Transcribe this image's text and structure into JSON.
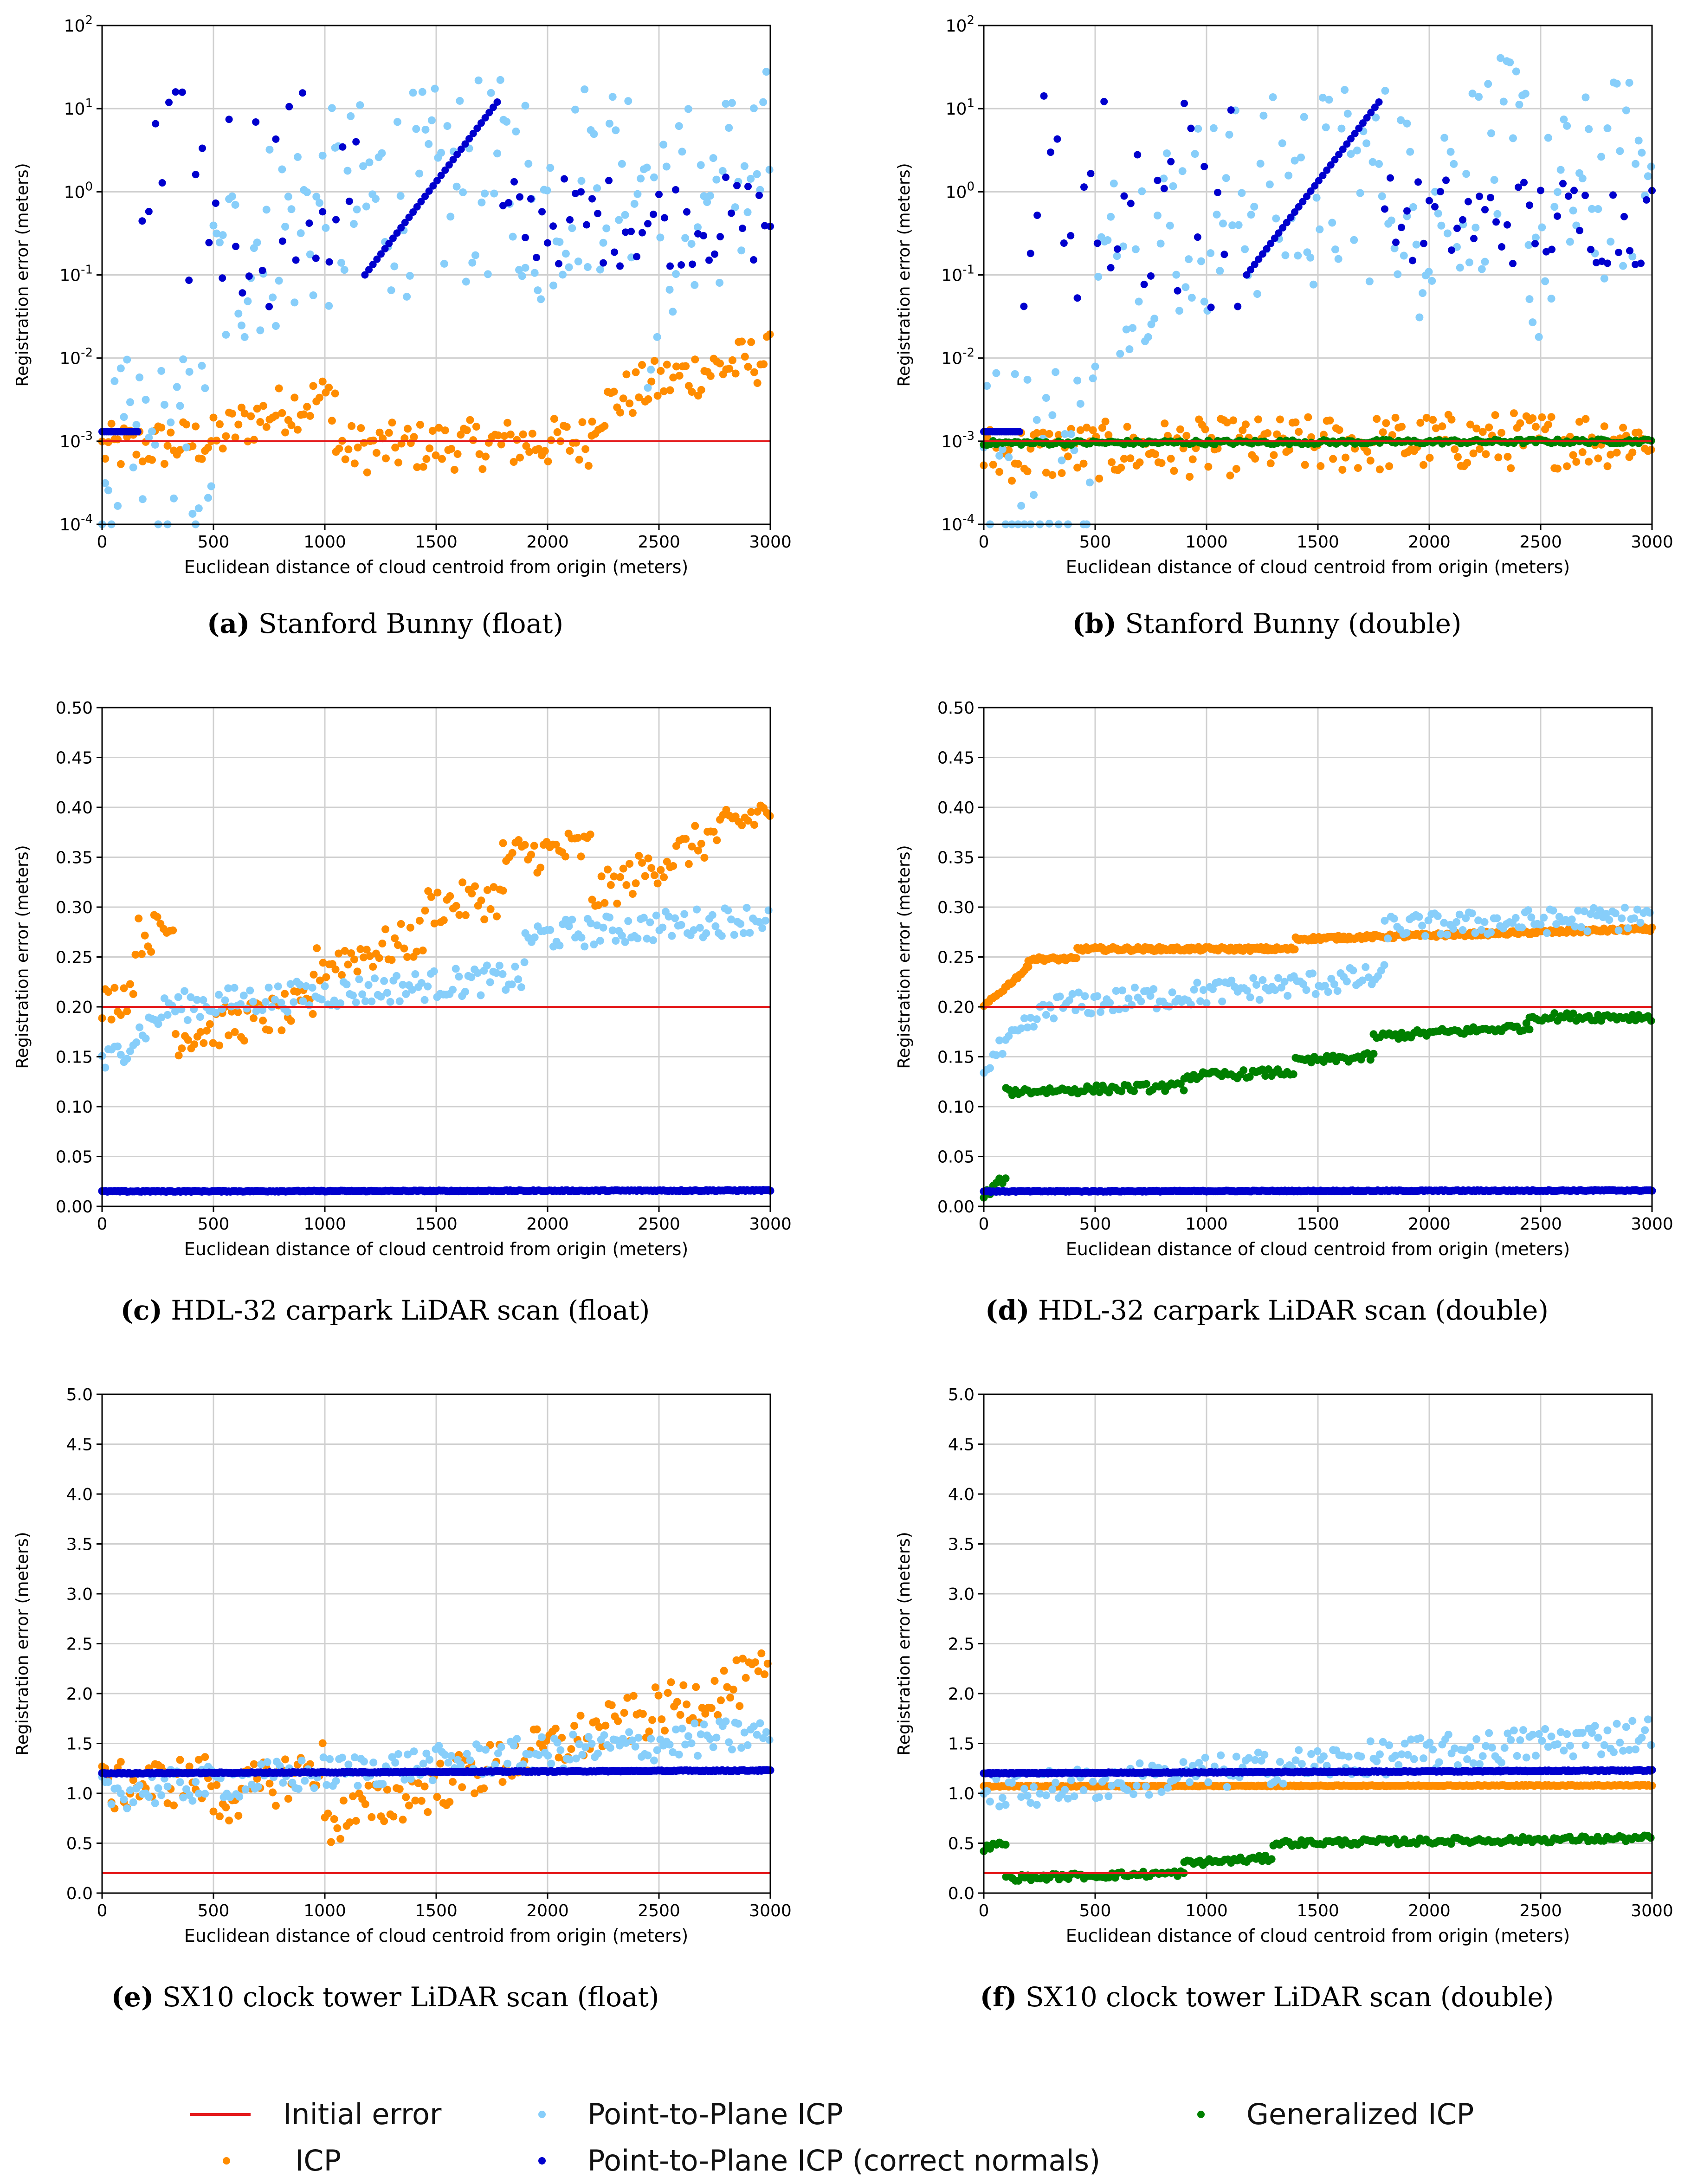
{
  "common": {
    "xlabel": "Euclidean distance of cloud centroid from origin (meters)",
    "ylabel": "Registration error (meters)",
    "colors": {
      "initial": "#e41a1c",
      "icp": "#ff8c00",
      "p2p": "#87cefa",
      "p2p_correct": "#0000cd",
      "gicp": "#008000"
    }
  },
  "captions": [
    {
      "letter": "(a)",
      "text": "Stanford Bunny (float)"
    },
    {
      "letter": "(b)",
      "text": "Stanford Bunny (double)"
    },
    {
      "letter": "(c)",
      "text": "HDL-32 carpark LiDAR scan (float)"
    },
    {
      "letter": "(d)",
      "text": "HDL-32 carpark LiDAR scan (double)"
    },
    {
      "letter": "(e)",
      "text": "SX10 clock tower LiDAR scan (float)"
    },
    {
      "letter": "(f)",
      "text": "SX10 clock tower LiDAR scan (double)"
    }
  ],
  "legend": [
    {
      "label": "Initial error",
      "kind": "line",
      "color": "#e41a1c"
    },
    {
      "label": "ICP",
      "kind": "dot",
      "color": "#ff8c00"
    },
    {
      "label": "Point-to-Plane ICP",
      "kind": "dot",
      "color": "#87cefa"
    },
    {
      "label": "Point-to-Plane ICP (correct normals)",
      "kind": "dot",
      "color": "#0000cd"
    },
    {
      "label": "Generalized ICP",
      "kind": "dot",
      "color": "#008000"
    }
  ],
  "chart_data": [
    {
      "type": "scatter",
      "title": "Stanford Bunny (float)",
      "scale": "log",
      "xlim": [
        0,
        3000
      ],
      "ylim": [
        0.0001,
        100
      ],
      "xticks": [
        "0",
        "500",
        "1000",
        "1500",
        "2000",
        "2500",
        "3000"
      ],
      "yticks": [
        {
          "base": "10",
          "exp": "-4"
        },
        {
          "base": "10",
          "exp": "-3"
        },
        {
          "base": "10",
          "exp": "-2"
        },
        {
          "base": "10",
          "exp": "-1"
        },
        {
          "base": "10",
          "exp": "0"
        },
        {
          "base": "10",
          "exp": "1"
        },
        {
          "base": "10",
          "exp": "2"
        }
      ],
      "initial_error": 0.001,
      "series": [
        {
          "name": "ICP",
          "key": "icp",
          "pattern": "segments",
          "segments": [
            [
              0,
              500,
              0.0008,
              0.001
            ],
            [
              500,
              1050,
              0.001,
              0.0035
            ],
            [
              1050,
              2200,
              0.0008,
              0.001
            ],
            [
              2200,
              3000,
              0.002,
              0.01
            ]
          ],
          "spread": 0.6
        },
        {
          "name": "Point-to-Plane ICP",
          "key": "p2p",
          "pattern": "segments",
          "segments": [
            [
              0,
              500,
              0.0005,
              0.0008
            ],
            [
              500,
              1900,
              0.05,
              1.5
            ],
            [
              1900,
              2450,
              0.2,
              3
            ],
            [
              2450,
              3000,
              0.05,
              2
            ]
          ],
          "spread": 2.5
        },
        {
          "name": "Point-to-Plane ICP (correct normals)",
          "key": "p2p_correct",
          "pattern": "bunny",
          "flat": 0.0013
        }
      ]
    },
    {
      "type": "scatter",
      "title": "Stanford Bunny (double)",
      "scale": "log",
      "xlim": [
        0,
        3000
      ],
      "ylim": [
        0.0001,
        100
      ],
      "xticks": [
        "0",
        "500",
        "1000",
        "1500",
        "2000",
        "2500",
        "3000"
      ],
      "yticks": [
        {
          "base": "10",
          "exp": "-4"
        },
        {
          "base": "10",
          "exp": "-3"
        },
        {
          "base": "10",
          "exp": "-2"
        },
        {
          "base": "10",
          "exp": "-1"
        },
        {
          "base": "10",
          "exp": "0"
        },
        {
          "base": "10",
          "exp": "1"
        },
        {
          "base": "10",
          "exp": "2"
        }
      ],
      "initial_error": 0.001,
      "series": [
        {
          "name": "ICP",
          "key": "icp",
          "pattern": "segments",
          "segments": [
            [
              0,
              3000,
              0.0007,
              0.0011
            ]
          ],
          "spread": 0.7
        },
        {
          "name": "Point-to-Plane ICP",
          "key": "p2p",
          "pattern": "segments",
          "segments": [
            [
              0,
              500,
              0.0005,
              0.0008
            ],
            [
              500,
              1900,
              0.05,
              1.5
            ],
            [
              1900,
              2450,
              0.2,
              3
            ],
            [
              2450,
              3000,
              0.05,
              2
            ]
          ],
          "spread": 2.5
        },
        {
          "name": "Generalized ICP",
          "key": "gicp",
          "pattern": "segments",
          "segments": [
            [
              0,
              3000,
              0.00095,
              0.001
            ]
          ],
          "spread": 0.05
        },
        {
          "name": "Point-to-Plane ICP (correct normals)",
          "key": "p2p_correct",
          "pattern": "bunny",
          "flat": 0.0013
        }
      ]
    },
    {
      "type": "scatter",
      "title": "HDL-32 carpark LiDAR scan (float)",
      "scale": "linear",
      "xlim": [
        0,
        3000
      ],
      "ylim": [
        0,
        0.5
      ],
      "xticks": [
        "0",
        "500",
        "1000",
        "1500",
        "2000",
        "2500",
        "3000"
      ],
      "yticks": [
        "0.00",
        "0.05",
        "0.10",
        "0.15",
        "0.20",
        "0.25",
        "0.30",
        "0.35",
        "0.40",
        "0.45",
        "0.50"
      ],
      "initial_error": 0.2,
      "series": [
        {
          "name": "ICP",
          "key": "icp",
          "pattern": "segments",
          "segments": [
            [
              0,
              150,
              0.2,
              0.22
            ],
            [
              150,
              330,
              0.27,
              0.28
            ],
            [
              330,
              950,
              0.17,
              0.2
            ],
            [
              950,
              1450,
              0.24,
              0.27
            ],
            [
              1450,
              1800,
              0.3,
              0.31
            ],
            [
              1800,
              2200,
              0.35,
              0.36
            ],
            [
              2200,
              3000,
              0.31,
              0.4
            ]
          ],
          "spread": 0.04
        },
        {
          "name": "Point-to-Plane ICP",
          "key": "p2p",
          "pattern": "segments",
          "segments": [
            [
              0,
              300,
              0.14,
              0.2
            ],
            [
              300,
              1900,
              0.2,
              0.23
            ],
            [
              1900,
              3000,
              0.27,
              0.29
            ]
          ],
          "spread": 0.03
        },
        {
          "name": "Point-to-Plane ICP (correct normals)",
          "key": "p2p_correct",
          "pattern": "segments",
          "segments": [
            [
              0,
              3000,
              0.015,
              0.016
            ]
          ],
          "spread": 0.001,
          "dense": true
        }
      ]
    },
    {
      "type": "scatter",
      "title": "HDL-32 carpark LiDAR scan (double)",
      "scale": "linear",
      "xlim": [
        0,
        3000
      ],
      "ylim": [
        0,
        0.5
      ],
      "xticks": [
        "0",
        "500",
        "1000",
        "1500",
        "2000",
        "2500",
        "3000"
      ],
      "yticks": [
        "0.00",
        "0.05",
        "0.10",
        "0.15",
        "0.20",
        "0.25",
        "0.30",
        "0.35",
        "0.40",
        "0.45",
        "0.50"
      ],
      "initial_error": 0.2,
      "series": [
        {
          "name": "ICP",
          "key": "icp",
          "pattern": "segments",
          "segments": [
            [
              0,
              200,
              0.2,
              0.24
            ],
            [
              200,
              420,
              0.248,
              0.248
            ],
            [
              420,
              1400,
              0.258,
              0.258
            ],
            [
              1400,
              3000,
              0.268,
              0.278
            ]
          ],
          "spread": 0.004,
          "dense": true
        },
        {
          "name": "Point-to-Plane ICP",
          "key": "p2p",
          "pattern": "segments",
          "segments": [
            [
              0,
              300,
              0.14,
              0.2
            ],
            [
              300,
              1800,
              0.2,
              0.23
            ],
            [
              1800,
              3000,
              0.28,
              0.29
            ]
          ],
          "spread": 0.025
        },
        {
          "name": "Generalized ICP",
          "key": "gicp",
          "pattern": "segments",
          "segments": [
            [
              0,
              100,
              0.01,
              0.03
            ],
            [
              100,
              900,
              0.115,
              0.12
            ],
            [
              900,
              1400,
              0.13,
              0.135
            ],
            [
              1400,
              1750,
              0.145,
              0.15
            ],
            [
              1750,
              2450,
              0.17,
              0.18
            ],
            [
              2450,
              3000,
              0.19,
              0.19
            ]
          ],
          "spread": 0.008
        },
        {
          "name": "Point-to-Plane ICP (correct normals)",
          "key": "p2p_correct",
          "pattern": "segments",
          "segments": [
            [
              0,
              3000,
              0.015,
              0.016
            ]
          ],
          "spread": 0.001,
          "dense": true
        }
      ]
    },
    {
      "type": "scatter",
      "title": "SX10 clock tower LiDAR scan (float)",
      "scale": "linear",
      "xlim": [
        0,
        3000
      ],
      "ylim": [
        0,
        5
      ],
      "xticks": [
        "0",
        "500",
        "1000",
        "1500",
        "2000",
        "2500",
        "3000"
      ],
      "yticks": [
        "0.0",
        "0.5",
        "1.0",
        "1.5",
        "2.0",
        "2.5",
        "3.0",
        "3.5",
        "4.0",
        "4.5",
        "5.0"
      ],
      "initial_error": 0.2,
      "series": [
        {
          "name": "ICP",
          "key": "icp",
          "pattern": "segments",
          "segments": [
            [
              0,
              500,
              1.05,
              1.15
            ],
            [
              500,
              1000,
              0.9,
              1.3
            ],
            [
              1000,
              3000,
              0.7,
              2.2
            ]
          ],
          "spread": 0.5
        },
        {
          "name": "Point-to-Plane ICP",
          "key": "p2p",
          "pattern": "segments",
          "segments": [
            [
              0,
              3000,
              1.0,
              1.6
            ]
          ],
          "spread": 0.35
        },
        {
          "name": "Point-to-Plane ICP (correct normals)",
          "key": "p2p_correct",
          "pattern": "segments",
          "segments": [
            [
              0,
              3000,
              1.2,
              1.23
            ]
          ],
          "spread": 0.01,
          "dense": true
        }
      ]
    },
    {
      "type": "scatter",
      "title": "SX10 clock tower LiDAR scan (double)",
      "scale": "linear",
      "xlim": [
        0,
        3000
      ],
      "ylim": [
        0,
        5
      ],
      "xticks": [
        "0",
        "500",
        "1000",
        "1500",
        "2000",
        "2500",
        "3000"
      ],
      "yticks": [
        "0.0",
        "0.5",
        "1.0",
        "1.5",
        "2.0",
        "2.5",
        "3.0",
        "3.5",
        "4.0",
        "4.5",
        "5.0"
      ],
      "initial_error": 0.2,
      "series": [
        {
          "name": "ICP",
          "key": "icp",
          "pattern": "segments",
          "segments": [
            [
              0,
              3000,
              1.07,
              1.08
            ]
          ],
          "spread": 0.01,
          "dense": true
        },
        {
          "name": "Point-to-Plane ICP",
          "key": "p2p",
          "pattern": "segments",
          "segments": [
            [
              0,
              3000,
              1.0,
              1.6
            ]
          ],
          "spread": 0.35
        },
        {
          "name": "Generalized ICP",
          "key": "gicp",
          "pattern": "segments",
          "segments": [
            [
              0,
              100,
              0.45,
              0.5
            ],
            [
              100,
              900,
              0.15,
              0.2
            ],
            [
              900,
              1300,
              0.3,
              0.35
            ],
            [
              1300,
              3000,
              0.5,
              0.55
            ]
          ],
          "spread": 0.06
        },
        {
          "name": "Point-to-Plane ICP (correct normals)",
          "key": "p2p_correct",
          "pattern": "segments",
          "segments": [
            [
              0,
              3000,
              1.2,
              1.23
            ]
          ],
          "spread": 0.01,
          "dense": true
        }
      ]
    }
  ]
}
